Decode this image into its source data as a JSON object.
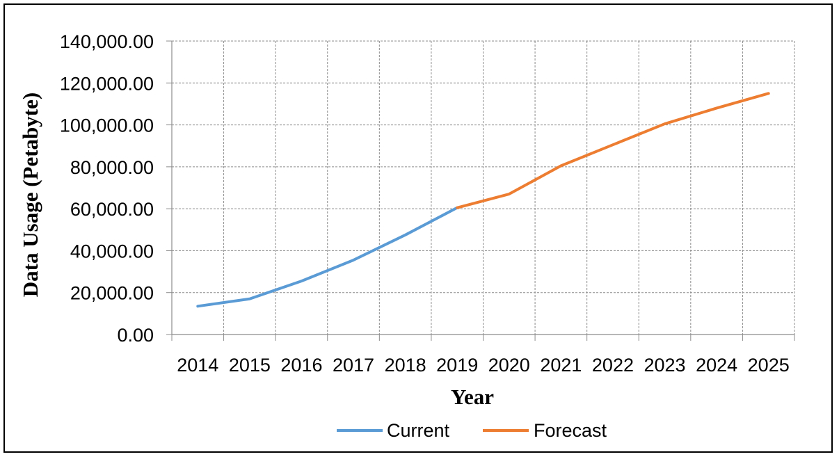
{
  "chart_data": {
    "type": "line",
    "xlabel": "Year",
    "ylabel": "Data Usage (Petabyte)",
    "categories": [
      "2014",
      "2015",
      "2016",
      "2017",
      "2018",
      "2019",
      "2020",
      "2021",
      "2022",
      "2023",
      "2024",
      "2025"
    ],
    "ylim": [
      0,
      140000
    ],
    "y_ticks": [
      "0.00",
      "20,000.00",
      "40,000.00",
      "60,000.00",
      "80,000.00",
      "100,000.00",
      "120,000.00",
      "140,000.00"
    ],
    "grid": true,
    "legend_position": "bottom",
    "series": [
      {
        "name": "Current",
        "color": "#5b9bd5",
        "values": [
          13500,
          17000,
          25500,
          35500,
          47500,
          60500,
          null,
          null,
          null,
          null,
          null,
          null
        ]
      },
      {
        "name": "Forecast",
        "color": "#ed7d31",
        "values": [
          null,
          null,
          null,
          null,
          null,
          60500,
          67000,
          80500,
          90500,
          100500,
          108000,
          115000
        ]
      }
    ]
  }
}
